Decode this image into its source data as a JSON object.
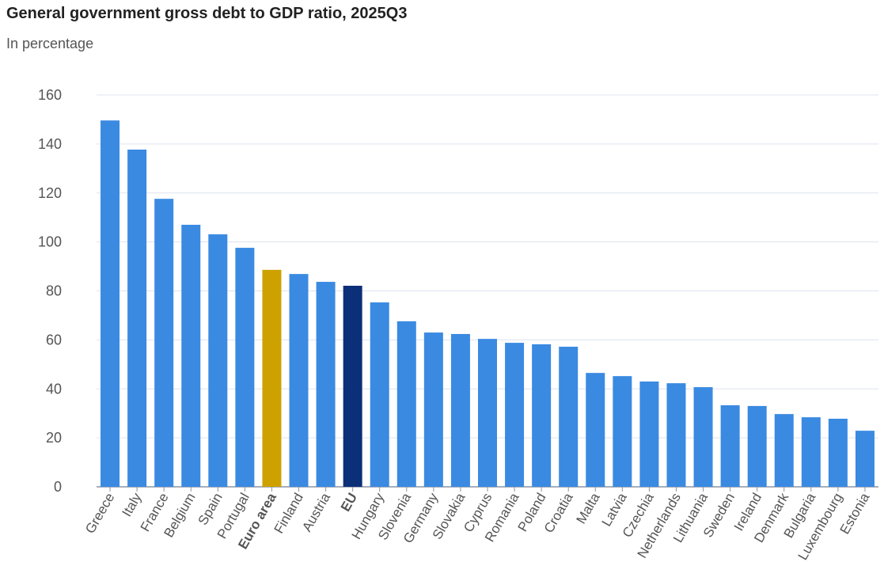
{
  "chart_data": {
    "type": "bar",
    "title": "General government gross debt to GDP ratio, 2025Q3",
    "subtitle": "In percentage",
    "xlabel": "",
    "ylabel": "",
    "ylim": [
      0,
      160
    ],
    "yticks": [
      0,
      20,
      40,
      60,
      80,
      100,
      120,
      140,
      160
    ],
    "grid": true,
    "categories": [
      "Greece",
      "Italy",
      "France",
      "Belgium",
      "Spain",
      "Portugal",
      "Euro area",
      "Finland",
      "Austria",
      "EU",
      "Hungary",
      "Slovenia",
      "Germany",
      "Slovakia",
      "Cyprus",
      "Romania",
      "Poland",
      "Croatia",
      "Malta",
      "Latvia",
      "Czechia",
      "Netherlands",
      "Lithuania",
      "Sweden",
      "Ireland",
      "Denmark",
      "Bulgaria",
      "Luxembourg",
      "Estonia"
    ],
    "values": [
      149.6,
      137.7,
      117.6,
      107.0,
      103.1,
      97.6,
      88.6,
      86.9,
      83.7,
      82.1,
      75.3,
      67.6,
      63.0,
      62.4,
      60.4,
      58.8,
      58.2,
      57.2,
      46.5,
      45.2,
      43.0,
      42.3,
      40.7,
      33.3,
      33.0,
      29.7,
      28.4,
      27.8,
      22.9
    ],
    "highlight": {
      "Euro area": "#cda200",
      "EU": "#0c2f7a"
    },
    "bold_categories": [
      "Euro area",
      "EU"
    ],
    "colors": {
      "default": "#3a8ae2",
      "grid": "#dde3ee"
    }
  }
}
